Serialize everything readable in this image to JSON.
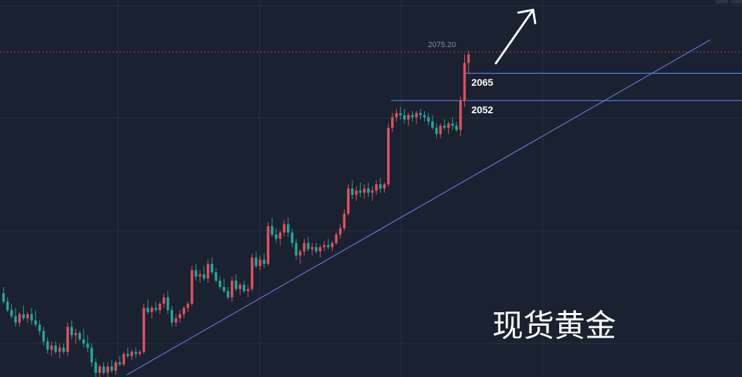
{
  "chart_data": {
    "type": "candlestick",
    "title": "现货黄金",
    "price_label": "2075.20",
    "last_price": 2075.2,
    "levels": [
      {
        "label": "2065",
        "value": 2065
      },
      {
        "label": "2052",
        "value": 2052
      }
    ],
    "trendline": {
      "from": 1921,
      "to": 2081
    },
    "grid": true,
    "colors": {
      "background": "#1a2130",
      "grid": "#283243",
      "up": "#e0505e",
      "down": "#26a69a",
      "levels": "#5b7ee5",
      "trendline": "#6a8ef0",
      "last_price_line": "#c0505a",
      "arrow": "#ffffff"
    },
    "ylim": [
      1920,
      2100
    ],
    "candles": [
      [
        1960,
        1963,
        1955,
        1956
      ],
      [
        1956,
        1958,
        1951,
        1952
      ],
      [
        1952,
        1955,
        1948,
        1949
      ],
      [
        1949,
        1953,
        1944,
        1946
      ],
      [
        1946,
        1951,
        1944,
        1950
      ],
      [
        1950,
        1954,
        1947,
        1948
      ],
      [
        1948,
        1951,
        1946,
        1950
      ],
      [
        1950,
        1953,
        1945,
        1947
      ],
      [
        1947,
        1952,
        1944,
        1945
      ],
      [
        1945,
        1947,
        1940,
        1942
      ],
      [
        1942,
        1944,
        1935,
        1937
      ],
      [
        1937,
        1939,
        1931,
        1933
      ],
      [
        1933,
        1937,
        1930,
        1935
      ],
      [
        1935,
        1937,
        1931,
        1932
      ],
      [
        1932,
        1936,
        1929,
        1934
      ],
      [
        1934,
        1936,
        1931,
        1932
      ],
      [
        1932,
        1946,
        1930,
        1944
      ],
      [
        1944,
        1947,
        1938,
        1940
      ],
      [
        1940,
        1943,
        1936,
        1941
      ],
      [
        1941,
        1942,
        1937,
        1938
      ],
      [
        1938,
        1943,
        1934,
        1936
      ],
      [
        1936,
        1940,
        1932,
        1934
      ],
      [
        1934,
        1936,
        1925,
        1927
      ],
      [
        1927,
        1929,
        1920,
        1922
      ],
      [
        1922,
        1926,
        1920,
        1925
      ],
      [
        1925,
        1927,
        1921,
        1922
      ],
      [
        1922,
        1927,
        1920,
        1925
      ],
      [
        1925,
        1928,
        1922,
        1923
      ],
      [
        1923,
        1928,
        1921,
        1927
      ],
      [
        1927,
        1930,
        1925,
        1926
      ],
      [
        1926,
        1932,
        1925,
        1931
      ],
      [
        1931,
        1934,
        1929,
        1930
      ],
      [
        1930,
        1933,
        1928,
        1932
      ],
      [
        1932,
        1934,
        1929,
        1931
      ],
      [
        1931,
        1933,
        1930,
        1932
      ],
      [
        1932,
        1955,
        1931,
        1953
      ],
      [
        1953,
        1957,
        1950,
        1951
      ],
      [
        1951,
        1954,
        1948,
        1953
      ],
      [
        1953,
        1956,
        1951,
        1952
      ],
      [
        1952,
        1956,
        1950,
        1955
      ],
      [
        1955,
        1960,
        1953,
        1958
      ],
      [
        1958,
        1961,
        1950,
        1952
      ],
      [
        1952,
        1954,
        1944,
        1946
      ],
      [
        1946,
        1950,
        1944,
        1948
      ],
      [
        1948,
        1952,
        1946,
        1950
      ],
      [
        1950,
        1954,
        1948,
        1953
      ],
      [
        1953,
        1956,
        1951,
        1955
      ],
      [
        1955,
        1973,
        1954,
        1971
      ],
      [
        1971,
        1974,
        1966,
        1968
      ],
      [
        1968,
        1971,
        1965,
        1969
      ],
      [
        1969,
        1973,
        1966,
        1967
      ],
      [
        1967,
        1976,
        1965,
        1974
      ],
      [
        1974,
        1977,
        1969,
        1970
      ],
      [
        1970,
        1972,
        1965,
        1966
      ],
      [
        1966,
        1968,
        1962,
        1963
      ],
      [
        1963,
        1967,
        1960,
        1961
      ],
      [
        1961,
        1963,
        1957,
        1958
      ],
      [
        1958,
        1968,
        1956,
        1966
      ],
      [
        1966,
        1969,
        1961,
        1962
      ],
      [
        1962,
        1965,
        1959,
        1964
      ],
      [
        1964,
        1966,
        1960,
        1961
      ],
      [
        1961,
        1964,
        1958,
        1962
      ],
      [
        1962,
        1979,
        1961,
        1977
      ],
      [
        1977,
        1980,
        1972,
        1973
      ],
      [
        1973,
        1978,
        1971,
        1976
      ],
      [
        1976,
        1979,
        1972,
        1974
      ],
      [
        1974,
        1994,
        1973,
        1992
      ],
      [
        1992,
        1996,
        1987,
        1988
      ],
      [
        1988,
        1991,
        1984,
        1986
      ],
      [
        1986,
        1990,
        1983,
        1989
      ],
      [
        1989,
        1995,
        1987,
        1993
      ],
      [
        1993,
        1996,
        1987,
        1989
      ],
      [
        1989,
        1991,
        1982,
        1984
      ],
      [
        1984,
        1986,
        1976,
        1978
      ],
      [
        1978,
        1981,
        1974,
        1980
      ],
      [
        1980,
        1986,
        1978,
        1984
      ],
      [
        1984,
        1987,
        1980,
        1981
      ],
      [
        1981,
        1984,
        1978,
        1982
      ],
      [
        1982,
        1984,
        1979,
        1980
      ],
      [
        1980,
        1983,
        1977,
        1982
      ],
      [
        1982,
        1985,
        1980,
        1983
      ],
      [
        1983,
        1986,
        1981,
        1982
      ],
      [
        1982,
        1985,
        1980,
        1984
      ],
      [
        1984,
        1989,
        1983,
        1988
      ],
      [
        1988,
        1993,
        1986,
        1991
      ],
      [
        1991,
        2000,
        1990,
        1998
      ],
      [
        1998,
        2012,
        1997,
        2010
      ],
      [
        2010,
        2014,
        2005,
        2007
      ],
      [
        2007,
        2011,
        2004,
        2009
      ],
      [
        2009,
        2013,
        2006,
        2008
      ],
      [
        2008,
        2012,
        2005,
        2010
      ],
      [
        2010,
        2013,
        2006,
        2008
      ],
      [
        2008,
        2011,
        2004,
        2009
      ],
      [
        2009,
        2014,
        2007,
        2012
      ],
      [
        2012,
        2015,
        2008,
        2010
      ],
      [
        2010,
        2013,
        2008,
        2012
      ],
      [
        2012,
        2041,
        2011,
        2039
      ],
      [
        2039,
        2046,
        2037,
        2044
      ],
      [
        2044,
        2048,
        2042,
        2046
      ],
      [
        2046,
        2049,
        2043,
        2045
      ],
      [
        2045,
        2048,
        2041,
        2043
      ],
      [
        2043,
        2046,
        2040,
        2045
      ],
      [
        2045,
        2047,
        2042,
        2044
      ],
      [
        2044,
        2047,
        2041,
        2046
      ],
      [
        2046,
        2048,
        2043,
        2045
      ],
      [
        2045,
        2047,
        2042,
        2044
      ],
      [
        2044,
        2046,
        2040,
        2042
      ],
      [
        2042,
        2045,
        2038,
        2039
      ],
      [
        2039,
        2041,
        2034,
        2036
      ],
      [
        2036,
        2041,
        2034,
        2040
      ],
      [
        2040,
        2043,
        2038,
        2039
      ],
      [
        2039,
        2042,
        2036,
        2041
      ],
      [
        2041,
        2044,
        2038,
        2040
      ],
      [
        2040,
        2042,
        2037,
        2038
      ],
      [
        2038,
        2054,
        2035,
        2052
      ],
      [
        2052,
        2074,
        2049,
        2070
      ],
      [
        2070,
        2076,
        2065,
        2074
      ]
    ]
  }
}
